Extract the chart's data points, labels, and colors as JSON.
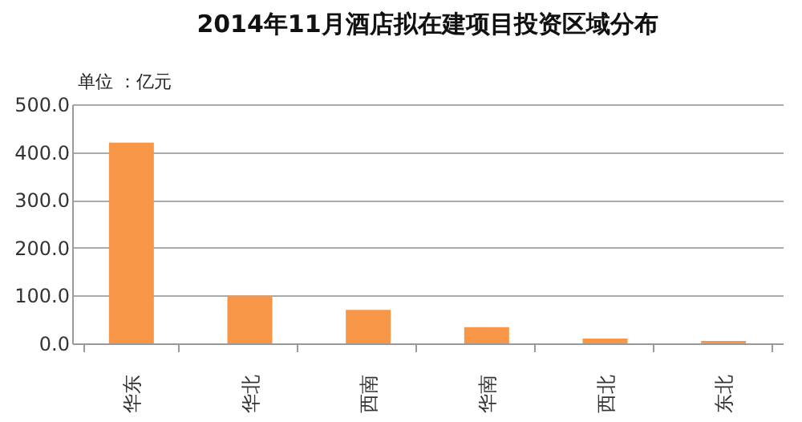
{
  "chart_data": {
    "type": "bar",
    "title": "2014年11月酒店拟在建项目投资区域分布",
    "ylabel": "单位 ：亿元",
    "categories": [
      "华东",
      "华北",
      "西南",
      "华南",
      "西北",
      "东北"
    ],
    "values": [
      420,
      100,
      70,
      34,
      10,
      5
    ],
    "color": "#f79646",
    "ylim": [
      0,
      500
    ],
    "yticks": [
      {
        "value": 0,
        "label": "0.0"
      },
      {
        "value": 100,
        "label": "100.0"
      },
      {
        "value": 200,
        "label": "200.0"
      },
      {
        "value": 300,
        "label": "300.0"
      },
      {
        "value": 400,
        "label": "400.0"
      },
      {
        "value": 500,
        "label": "500.0"
      }
    ],
    "grid": "y"
  }
}
